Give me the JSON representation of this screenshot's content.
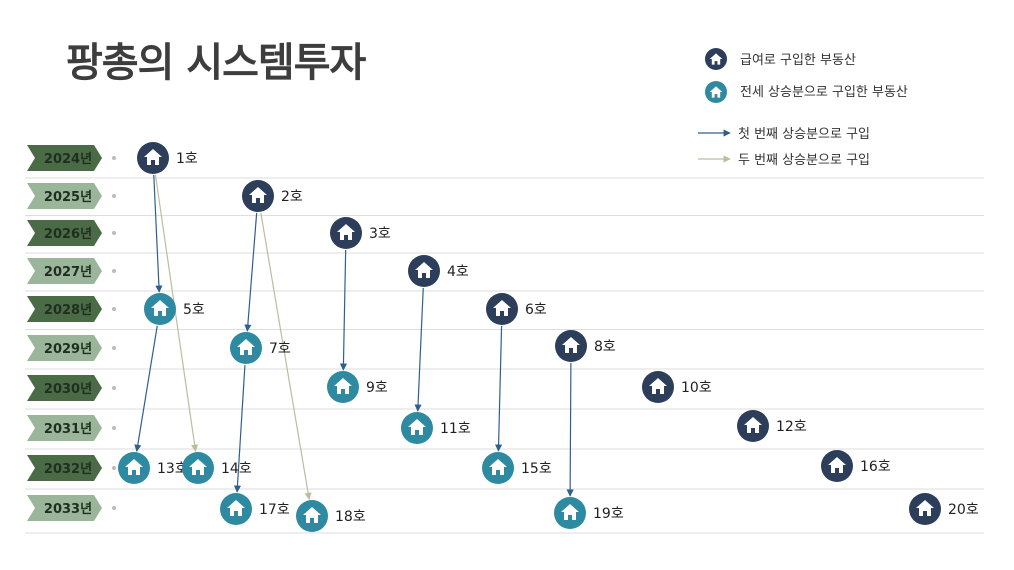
{
  "title": "팡총의 시스템투자",
  "legend": {
    "salary": {
      "label": "급여로 구입한 부동산",
      "color": "#2c3e5a"
    },
    "jeonse": {
      "label": "전세 상승분으로 구입한 부동산",
      "color": "#2e8aa0"
    },
    "first_arrow": {
      "label": "첫 번째 상승분으로 구입",
      "color": "#2f5f8f"
    },
    "second_arrow": {
      "label": "두 번째 상승분으로 구입",
      "color": "#bdbd9e"
    }
  },
  "years": [
    "2024년",
    "2025년",
    "2026년",
    "2027년",
    "2028년",
    "2029년",
    "2030년",
    "2031년",
    "2032년",
    "2033년"
  ],
  "houses": [
    {
      "id": 1,
      "label": "1호",
      "year": "2024년",
      "type": "salary"
    },
    {
      "id": 2,
      "label": "2호",
      "year": "2025년",
      "type": "salary"
    },
    {
      "id": 3,
      "label": "3호",
      "year": "2026년",
      "type": "salary"
    },
    {
      "id": 4,
      "label": "4호",
      "year": "2027년",
      "type": "salary"
    },
    {
      "id": 5,
      "label": "5호",
      "year": "2028년",
      "type": "jeonse"
    },
    {
      "id": 6,
      "label": "6호",
      "year": "2028년",
      "type": "salary"
    },
    {
      "id": 7,
      "label": "7호",
      "year": "2029년",
      "type": "jeonse"
    },
    {
      "id": 8,
      "label": "8호",
      "year": "2029년",
      "type": "salary"
    },
    {
      "id": 9,
      "label": "9호",
      "year": "2030년",
      "type": "jeonse"
    },
    {
      "id": 10,
      "label": "10호",
      "year": "2030년",
      "type": "salary"
    },
    {
      "id": 11,
      "label": "11호",
      "year": "2031년",
      "type": "jeonse"
    },
    {
      "id": 12,
      "label": "12호",
      "year": "2031년",
      "type": "salary"
    },
    {
      "id": 13,
      "label": "13호",
      "year": "2032년",
      "type": "jeonse"
    },
    {
      "id": 14,
      "label": "14호",
      "year": "2032년",
      "type": "jeonse"
    },
    {
      "id": 15,
      "label": "15호",
      "year": "2032년",
      "type": "jeonse"
    },
    {
      "id": 16,
      "label": "16호",
      "year": "2032년",
      "type": "salary"
    },
    {
      "id": 17,
      "label": "17호",
      "year": "2033년",
      "type": "jeonse"
    },
    {
      "id": 18,
      "label": "18호",
      "year": "2033년",
      "type": "jeonse"
    },
    {
      "id": 19,
      "label": "19호",
      "year": "2033년",
      "type": "jeonse"
    },
    {
      "id": 20,
      "label": "20호",
      "year": "2033년",
      "type": "salary"
    }
  ],
  "links": [
    {
      "from": 1,
      "to": 5,
      "kind": "first"
    },
    {
      "from": 1,
      "to": 14,
      "kind": "second"
    },
    {
      "from": 2,
      "to": 7,
      "kind": "first"
    },
    {
      "from": 2,
      "to": 18,
      "kind": "second"
    },
    {
      "from": 3,
      "to": 9,
      "kind": "first"
    },
    {
      "from": 4,
      "to": 11,
      "kind": "first"
    },
    {
      "from": 5,
      "to": 13,
      "kind": "first"
    },
    {
      "from": 6,
      "to": 15,
      "kind": "first"
    },
    {
      "from": 7,
      "to": 17,
      "kind": "first"
    },
    {
      "from": 8,
      "to": 19,
      "kind": "first"
    }
  ]
}
